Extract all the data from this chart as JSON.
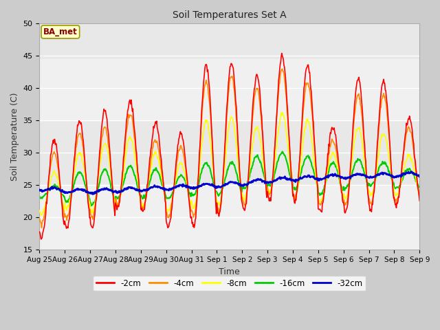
{
  "title": "Soil Temperatures Set A",
  "xlabel": "Time",
  "ylabel": "Soil Temperature (C)",
  "ylim": [
    15,
    50
  ],
  "xlim": [
    0,
    15
  ],
  "colors": {
    "-2cm": "#ff0000",
    "-4cm": "#ff8c00",
    "-8cm": "#ffff00",
    "-16cm": "#00cc00",
    "-32cm": "#0000cc"
  },
  "linewidths": {
    "-2cm": 1.2,
    "-4cm": 1.2,
    "-8cm": 1.2,
    "-16cm": 1.5,
    "-32cm": 2.0
  },
  "annotation_text": "BA_met",
  "annotation_bg": "#ffffcc",
  "annotation_border": "#999900",
  "annotation_text_color": "#880000",
  "tick_labels": [
    "Aug 25",
    "Aug 26",
    "Aug 27",
    "Aug 28",
    "Aug 29",
    "Aug 30",
    "Aug 31",
    "Sep 1",
    "Sep 2",
    "Sep 3",
    "Sep 4",
    "Sep 5",
    "Sep 6",
    "Sep 7",
    "Sep 8",
    "Sep 9"
  ],
  "tick_positions": [
    0,
    1,
    2,
    3,
    4,
    5,
    6,
    7,
    8,
    9,
    10,
    11,
    12,
    13,
    14,
    15
  ],
  "yticks": [
    15,
    20,
    25,
    30,
    35,
    40,
    45,
    50
  ],
  "fig_bg": "#cccccc",
  "plot_bg": "#e8e8e8",
  "band1_lo": 25.0,
  "band1_hi": 35.0,
  "band2_lo": 44.5,
  "band2_hi": 50.0,
  "band3_lo": 15.0,
  "band3_hi": 25.0
}
